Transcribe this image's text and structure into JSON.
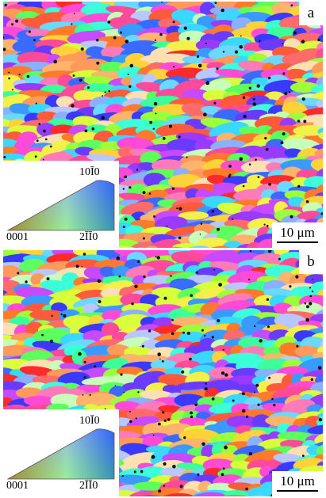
{
  "panels": [
    {
      "letter": "a",
      "scale_bar": "10 μm",
      "key": {
        "top": "10Ī0",
        "left": "0001",
        "right": "2ĪĪ0"
      }
    },
    {
      "letter": "b",
      "scale_bar": "10 μm",
      "key": {
        "top": "10Ī0",
        "left": "0001",
        "right": "2ĪĪ0"
      }
    }
  ]
}
